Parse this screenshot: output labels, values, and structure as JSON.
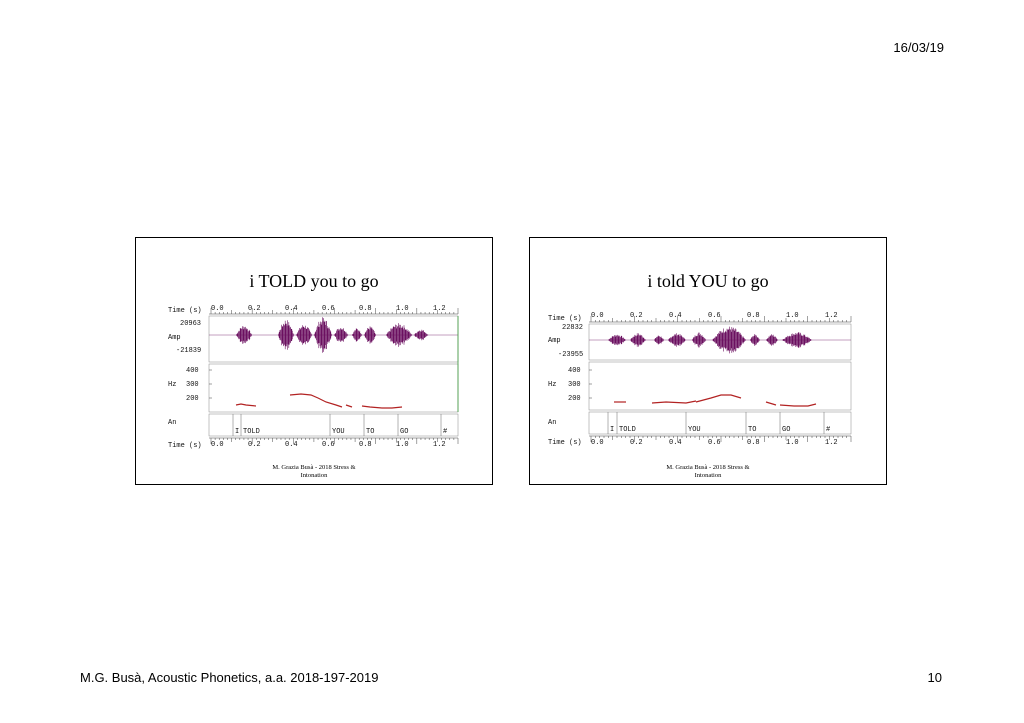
{
  "header": {
    "date": "16/03/19"
  },
  "footer": {
    "course": "M.G. Busà, Acoustic Phonetics, a.a. 2018-197-2019",
    "page_number": "10"
  },
  "slides": [
    {
      "title": "i TOLD you to go",
      "caption": "M. Grazia Busà - 2018 Stress &\nIntonation",
      "panel": {
        "time_label": "Time (s)",
        "time_ticks": [
          "0.0",
          "0.2",
          "0.4",
          "0.6",
          "0.8",
          "1.0",
          "1.2"
        ],
        "amp_label": "Amp",
        "amp_max": "20963",
        "amp_min": "-21839",
        "hz_label": "Hz",
        "hz_ticks": [
          "400",
          "300",
          "200"
        ],
        "annotation_label": "An",
        "words": [
          "I",
          "TOLD",
          "YOU",
          "TO",
          "GO",
          "#"
        ],
        "waveform_color": "#6b1060",
        "pitch_color": "#b22222"
      }
    },
    {
      "title": "i told YOU to go",
      "caption": "M. Grazia Busà - 2018 Stress &\nIntonation",
      "panel": {
        "time_label": "Time (s)",
        "time_ticks": [
          "0.0",
          "0.2",
          "0.4",
          "0.6",
          "0.8",
          "1.0",
          "1.2"
        ],
        "amp_label": "Amp",
        "amp_max": "22832",
        "amp_min": "-23955",
        "hz_label": "Hz",
        "hz_ticks": [
          "400",
          "300",
          "200"
        ],
        "annotation_label": "An",
        "words": [
          "I",
          "TOLD",
          "YOU",
          "TO",
          "GO",
          "#"
        ],
        "waveform_color": "#6b1060",
        "pitch_color": "#b22222"
      }
    }
  ]
}
